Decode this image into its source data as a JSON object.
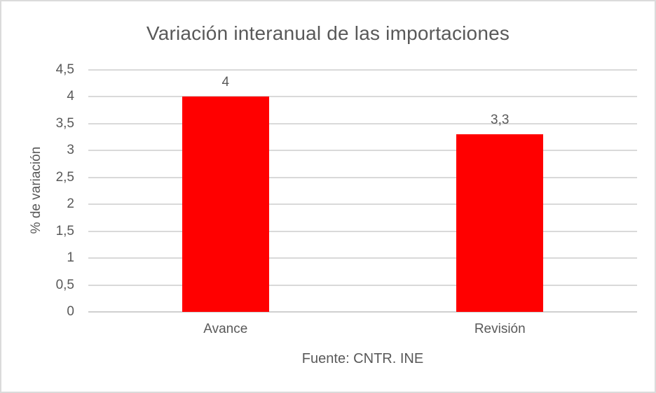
{
  "window": {
    "background_color": "#FFFFFF",
    "border_color": "#DBDBDB"
  },
  "chart_data": {
    "type": "bar",
    "title": "Variación interanual de las importaciones",
    "ylabel": "% de variación",
    "xlabel": "",
    "source": "Fuente: CNTR. INE",
    "categories": [
      "Avance",
      "Revisión"
    ],
    "values": [
      4,
      3.3
    ],
    "value_labels": [
      "4",
      "3,3"
    ],
    "ylim": [
      0,
      4.5
    ],
    "ytick_values": [
      0,
      0.5,
      1,
      1.5,
      2,
      2.5,
      3,
      3.5,
      4,
      4.5
    ],
    "ytick_labels": [
      "0",
      "0,5",
      "1",
      "1,5",
      "2",
      "2,5",
      "3",
      "3,5",
      "4",
      "4,5"
    ],
    "grid": true,
    "legend": "none",
    "bar_color": "#FF0000",
    "gridline_color": "#D9D9D9",
    "text_color": "#595959"
  }
}
